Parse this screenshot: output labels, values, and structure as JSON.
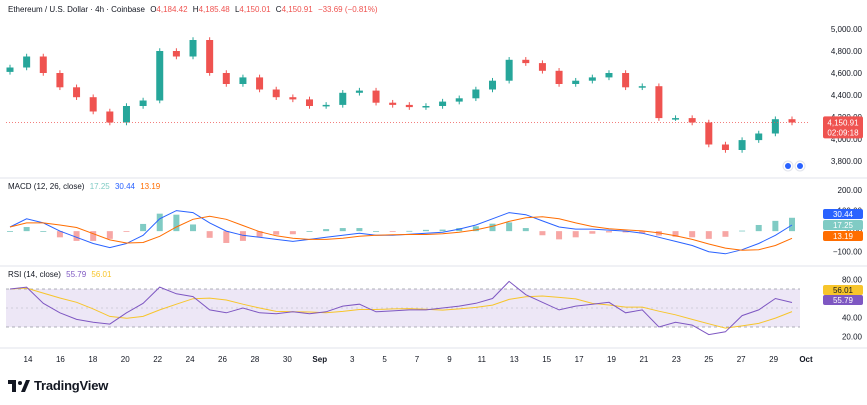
{
  "symbol": {
    "name": "Ethereum / U.S. Dollar · 4h · Coinbase",
    "open_label": "O",
    "open": "4,184.42",
    "high_label": "H",
    "high": "4,185.48",
    "low_label": "L",
    "low": "4,150.01",
    "close_label": "C",
    "close": "4,150.91",
    "change": "−33.69 (−0.81%)"
  },
  "price_axis": {
    "ticks": [
      "5,000.00",
      "4,800.00",
      "4,600.00",
      "4,400.00",
      "4,200.00",
      "4,000.00",
      "3,800.00"
    ],
    "tick_values": [
      5000,
      4800,
      4600,
      4400,
      4200,
      4000,
      3800
    ],
    "last_price": "4,150.91",
    "last_value": 4150.91,
    "countdown": "02:09:18"
  },
  "macd": {
    "title": "MACD (12, 26, close)",
    "v1": "17.25",
    "v2": "30.44",
    "v3": "13.19",
    "ticks": [
      "200.00",
      "100.00",
      "0.00",
      "−100.00"
    ],
    "tick_values": [
      200,
      100,
      0,
      -100
    ],
    "tag_macd": "30.44",
    "tag_hist": "17.25",
    "tag_signal": "13.19"
  },
  "rsi": {
    "title": "RSI (14, close)",
    "v1": "55.79",
    "v2": "56.01",
    "ticks": [
      "80.00",
      "60.00",
      "40.00",
      "20.00"
    ],
    "tick_values": [
      80,
      60,
      40,
      20
    ],
    "tag_ma": "56.01",
    "tag_rsi": "55.79"
  },
  "time_axis": [
    "14",
    "16",
    "18",
    "20",
    "22",
    "24",
    "26",
    "28",
    "30",
    "Sep",
    "3",
    "5",
    "7",
    "9",
    "11",
    "13",
    "15",
    "17",
    "19",
    "21",
    "23",
    "25",
    "27",
    "29",
    "Oct"
  ],
  "brand": "TradingView",
  "colors": {
    "up": "#26a69a",
    "down": "#ef5350",
    "macd_line": "#2962ff",
    "signal_line": "#ff6d00",
    "rsi_line": "#7e57c2",
    "rsi_ma": "#f7c52b",
    "rsi_band": "#ede7f6"
  },
  "chart_data": {
    "type": "line",
    "x": [
      "Aug 14",
      "Aug 15",
      "Aug 16",
      "Aug 17",
      "Aug 18",
      "Aug 19",
      "Aug 20",
      "Aug 21",
      "Aug 22",
      "Aug 23",
      "Aug 24",
      "Aug 25",
      "Aug 26",
      "Aug 27",
      "Aug 28",
      "Aug 29",
      "Aug 30",
      "Aug 31",
      "Sep 1",
      "Sep 2",
      "Sep 3",
      "Sep 4",
      "Sep 5",
      "Sep 6",
      "Sep 7",
      "Sep 8",
      "Sep 9",
      "Sep 10",
      "Sep 11",
      "Sep 12",
      "Sep 13",
      "Sep 14",
      "Sep 15",
      "Sep 16",
      "Sep 17",
      "Sep 18",
      "Sep 19",
      "Sep 20",
      "Sep 21",
      "Sep 22",
      "Sep 23",
      "Sep 24",
      "Sep 25",
      "Sep 26",
      "Sep 27",
      "Sep 28",
      "Sep 29",
      "Sep 30"
    ],
    "series": [
      {
        "values": [
          4650,
          4750,
          4600,
          4470,
          4380,
          4250,
          4150,
          4300,
          4350,
          4800,
          4750,
          4900,
          4600,
          4500,
          4560,
          4450,
          4380,
          4360,
          4300,
          4310,
          4420,
          4440,
          4330,
          4310,
          4290,
          4300,
          4340,
          4370,
          4450,
          4530,
          4720,
          4690,
          4620,
          4500,
          4530,
          4560,
          4600,
          4470,
          4480,
          4190,
          4190,
          4150,
          3950,
          3900,
          3990,
          4050,
          4180,
          4150
        ]
      }
    ],
    "macd": [
      20,
      60,
      40,
      0,
      -30,
      -60,
      -80,
      -60,
      -20,
      60,
      100,
      90,
      40,
      0,
      -20,
      -30,
      -40,
      -50,
      -40,
      -30,
      -20,
      -10,
      -20,
      -20,
      -15,
      -10,
      -5,
      10,
      30,
      60,
      90,
      80,
      50,
      20,
      10,
      10,
      5,
      0,
      -10,
      -30,
      -50,
      -70,
      -100,
      -110,
      -90,
      -60,
      -20,
      30
    ],
    "rsi": [
      70,
      72,
      55,
      45,
      38,
      35,
      33,
      45,
      55,
      72,
      65,
      62,
      48,
      45,
      50,
      45,
      44,
      46,
      44,
      46,
      52,
      54,
      46,
      47,
      48,
      48,
      50,
      52,
      55,
      60,
      78,
      64,
      56,
      48,
      52,
      54,
      56,
      45,
      48,
      30,
      35,
      32,
      22,
      25,
      42,
      48,
      60,
      55.79
    ],
    "ylim_price": [
      3700,
      5100
    ],
    "ylim_macd": [
      -150,
      200
    ],
    "ylim_rsi": [
      10,
      90
    ],
    "grid": false,
    "legend": "top-left"
  }
}
